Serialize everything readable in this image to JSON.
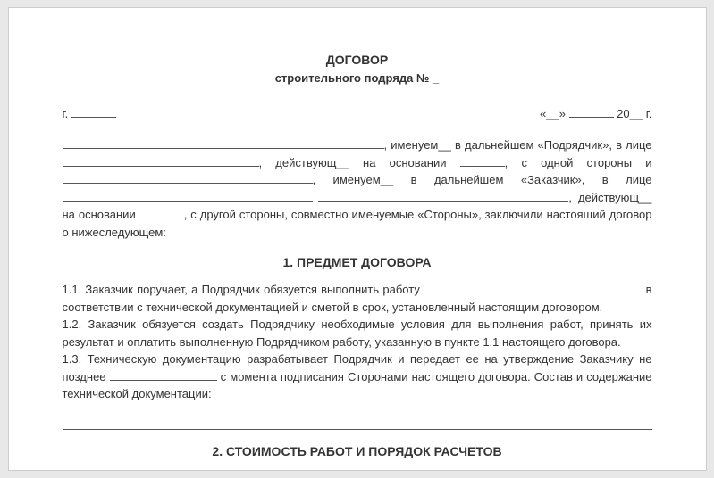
{
  "header": {
    "title_line1": "ДОГОВОР",
    "title_line2_prefix": "строительного подряда № ",
    "title_line2_placeholder": "_"
  },
  "date": {
    "city_label": "г.",
    "quote_open": "«__»",
    "year_prefix": "20__",
    "city_suffix": "г."
  },
  "preamble": {
    "p1a": ", именуем__ в дальнейшем «Подрядчик», в лице ",
    "p1b": ", действующ__ на основании ",
    "p1c": ", с одной стороны и ",
    "p1d": ", именуем__ в дальнейшем «Заказчик», в лице ",
    "p1e": ", действующ__ на основании ",
    "p1f": ", с другой стороны, совместно именуемые «Стороны», заключили настоящий договор о нижеследующем:"
  },
  "section1": {
    "title": "1. ПРЕДМЕТ ДОГОВОРА",
    "c11a": "1.1. Заказчик поручает, а Подрядчик обязуется выполнить работу ",
    "c11b": " в соответствии с технической документацией и сметой в срок, установленный настоящим договором.",
    "c12": "1.2. Заказчик обязуется создать Подрядчику необходимые условия для выполнения работ, принять их результат и оплатить выполненную Подрядчиком работу, указанную в пункте 1.1 настоящего договора.",
    "c13a": "1.3. Техническую документацию разрабатывает Подрядчик и передает ее на утверждение Заказчику не позднее ",
    "c13b": " с момента подписания Сторонами настоящего договора. Состав и содержание технической документации:"
  },
  "section2": {
    "title": "2. СТОИМОСТЬ РАБОТ И ПОРЯДОК РАСЧЕТОВ"
  },
  "colors": {
    "page_bg": "#ffffff",
    "body_bg": "#e8e8e8",
    "text": "#333333",
    "underline": "#555555"
  },
  "typography": {
    "body_fontsize": 13,
    "title_fontsize": 14,
    "font_family": "Arial"
  }
}
